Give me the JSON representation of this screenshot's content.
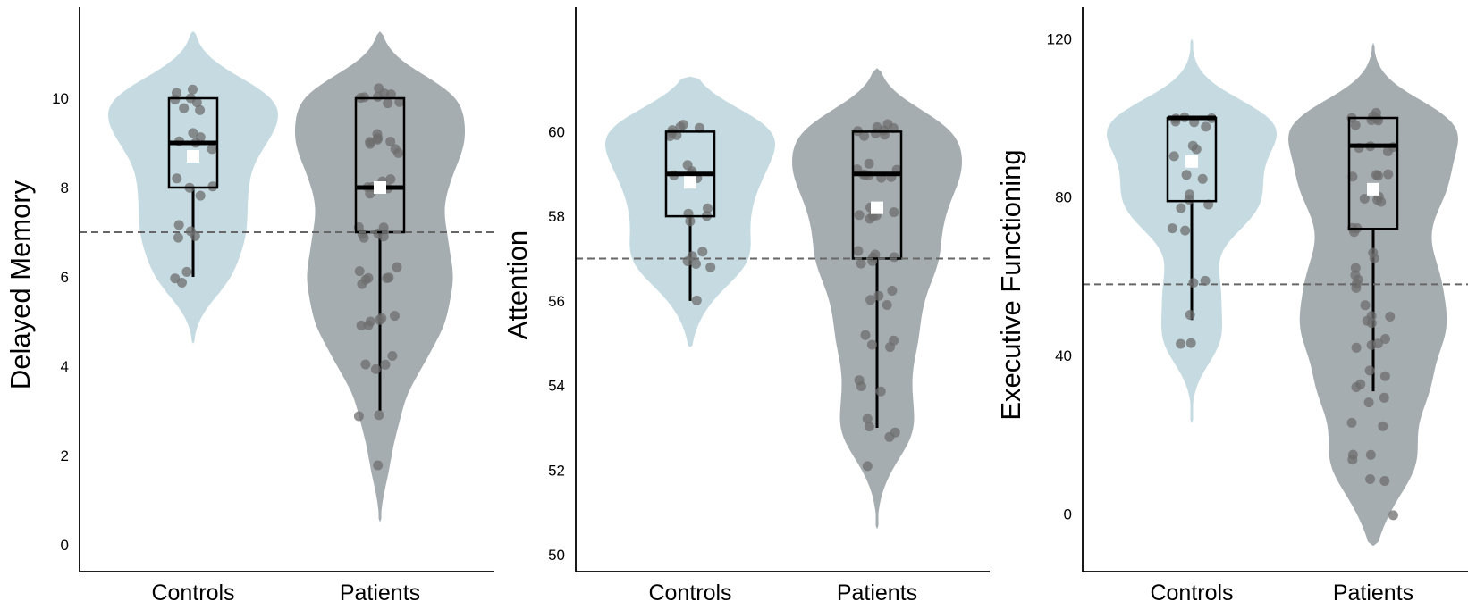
{
  "colors": {
    "controls_violin": "#c5dbe1",
    "patients_violin": "#a6adb0",
    "points": "#6d6d6d",
    "box_line": "#000000",
    "mean_marker": "#ffffff",
    "reference_line": "#666666"
  },
  "chart_data": [
    {
      "type": "violin",
      "ylabel": "Delayed Memory",
      "categories": [
        "Controls",
        "Patients"
      ],
      "yticks": [
        0,
        2,
        4,
        6,
        8,
        10
      ],
      "ylim": [
        -0.6,
        12.0
      ],
      "reference_line": 7,
      "groups": [
        {
          "name": "Controls",
          "violin_range": [
            4.5,
            11.5
          ],
          "box": {
            "whisker_low": 6,
            "q1": 8,
            "median": 9,
            "q3": 10,
            "whisker_high": 10
          },
          "mean": 8.7,
          "points": [
            10.2,
            10.1,
            10.0,
            10.0,
            9.9,
            9.8,
            9.7,
            9.2,
            9.1,
            9.0,
            9.0,
            8.9,
            8.2,
            8.0,
            8.0,
            7.8,
            7.2,
            7.0,
            6.9,
            6.9,
            6.1,
            6.0,
            5.9
          ]
        },
        {
          "name": "Patients",
          "violin_range": [
            0.5,
            11.5
          ],
          "box": {
            "whisker_low": 3,
            "q1": 7,
            "median": 8,
            "q3": 10,
            "whisker_high": 10
          },
          "mean": 8.0,
          "points": [
            10.2,
            10.1,
            10.1,
            10.0,
            10.0,
            10.0,
            9.9,
            9.9,
            9.2,
            9.1,
            9.1,
            9.0,
            9.0,
            9.0,
            8.9,
            8.8,
            8.2,
            8.1,
            8.0,
            8.0,
            8.0,
            7.9,
            7.1,
            7.1,
            7.0,
            7.0,
            6.9,
            6.9,
            6.2,
            6.1,
            6.0,
            6.0,
            6.0,
            5.9,
            5.8,
            5.1,
            5.1,
            5.0,
            5.0,
            4.9,
            4.9,
            4.2,
            4.0,
            4.0,
            3.9,
            2.9,
            2.9,
            1.8
          ]
        }
      ]
    },
    {
      "type": "violin",
      "ylabel": "Attention",
      "categories": [
        "Controls",
        "Patients"
      ],
      "yticks": [
        50,
        52,
        54,
        56,
        58,
        60
      ],
      "ylim": [
        49.6,
        62.9
      ],
      "reference_line": 57,
      "groups": [
        {
          "name": "Controls",
          "violin_range": [
            54.9,
            61.3
          ],
          "box": {
            "whisker_low": 56,
            "q1": 58,
            "median": 59,
            "q3": 60,
            "whisker_high": 60
          },
          "mean": 58.8,
          "points": [
            60.2,
            60.1,
            60.1,
            60.0,
            60.0,
            59.9,
            59.9,
            59.2,
            59.1,
            59.0,
            59.0,
            58.9,
            58.2,
            58.1,
            58.0,
            57.9,
            57.2,
            57.1,
            56.9,
            56.9,
            56.8,
            56.0
          ]
        },
        {
          "name": "Patients",
          "violin_range": [
            50.6,
            61.5
          ],
          "box": {
            "whisker_low": 53,
            "q1": 57,
            "median": 59,
            "q3": 60,
            "whisker_high": 60
          },
          "mean": 58.2,
          "points": [
            60.2,
            60.1,
            60.1,
            60.0,
            60.0,
            60.0,
            59.9,
            59.9,
            59.2,
            59.1,
            59.1,
            59.0,
            59.0,
            59.0,
            58.9,
            58.9,
            58.2,
            58.1,
            58.0,
            58.0,
            58.0,
            57.9,
            57.2,
            57.1,
            57.0,
            57.0,
            56.9,
            56.9,
            56.2,
            56.1,
            56.0,
            55.9,
            55.2,
            55.1,
            55.0,
            54.9,
            54.1,
            54.0,
            53.9,
            53.2,
            53.0,
            52.9,
            52.8,
            52.1
          ]
        }
      ]
    },
    {
      "type": "violin",
      "ylabel": "Executive Functioning",
      "categories": [
        "Controls",
        "Patients"
      ],
      "yticks": [
        0,
        40,
        80,
        120
      ],
      "ylim": [
        -14.5,
        127.5
      ],
      "reference_line": 58,
      "groups": [
        {
          "name": "Controls",
          "violin_range": [
            23,
            120
          ],
          "box": {
            "whisker_low": 49,
            "q1": 79,
            "median": 100,
            "q3": 100,
            "whisker_high": 100
          },
          "mean": 89,
          "points": [
            100,
            100,
            100,
            99,
            99,
            98,
            93,
            92,
            90,
            86,
            85,
            81,
            79,
            78,
            77,
            72,
            72,
            59,
            58,
            50,
            43,
            43
          ]
        },
        {
          "name": "Patients",
          "violin_range": [
            -8,
            119
          ],
          "box": {
            "whisker_low": 31,
            "q1": 72,
            "median": 93,
            "q3": 100,
            "whisker_high": 100
          },
          "mean": 82,
          "points": [
            101,
            100,
            100,
            100,
            99,
            99,
            98,
            93,
            93,
            92,
            92,
            86,
            86,
            85,
            85,
            80,
            80,
            79,
            79,
            72,
            72,
            71,
            66,
            65,
            62,
            60,
            59,
            58,
            57,
            53,
            50,
            50,
            49,
            48,
            44,
            43,
            43,
            42,
            36,
            35,
            33,
            32,
            29,
            28,
            23,
            22,
            15,
            15,
            14,
            9,
            8,
            0
          ]
        }
      ]
    }
  ]
}
